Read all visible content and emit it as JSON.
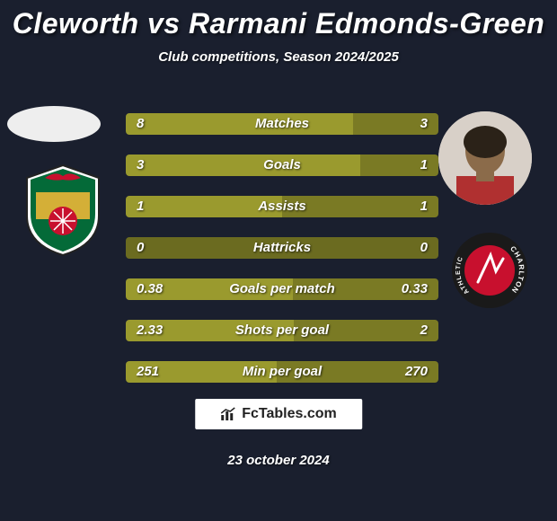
{
  "title": "Cleworth vs Rarmani Edmonds-Green",
  "subtitle": "Club competitions, Season 2024/2025",
  "footer_brand": "FcTables.com",
  "footer_date": "23 october 2024",
  "colors": {
    "background": "#1a1f2e",
    "left_bar": "#9a9a2e",
    "right_bar": "#7a7a24",
    "zero_bar": "#6b6b20"
  },
  "bars": [
    {
      "label": "Matches",
      "left": "8",
      "right": "3",
      "left_pct": 72.7,
      "right_pct": 27.3
    },
    {
      "label": "Goals",
      "left": "3",
      "right": "1",
      "left_pct": 75,
      "right_pct": 25
    },
    {
      "label": "Assists",
      "left": "1",
      "right": "1",
      "left_pct": 50,
      "right_pct": 50
    },
    {
      "label": "Hattricks",
      "left": "0",
      "right": "0",
      "left_pct": 50,
      "right_pct": 50,
      "zero": true
    },
    {
      "label": "Goals per match",
      "left": "0.38",
      "right": "0.33",
      "left_pct": 53.5,
      "right_pct": 46.5
    },
    {
      "label": "Shots per goal",
      "left": "2.33",
      "right": "2",
      "left_pct": 53.8,
      "right_pct": 46.2
    },
    {
      "label": "Min per goal",
      "left": "251",
      "right": "270",
      "left_pct": 48.2,
      "right_pct": 51.8
    }
  ],
  "crest_left": {
    "primary": "#c8102e",
    "secondary": "#046a38",
    "gold": "#d4af37"
  },
  "crest_right": {
    "outer": "#1a1a1a",
    "inner": "#c8102e",
    "text": "#ffffff"
  }
}
